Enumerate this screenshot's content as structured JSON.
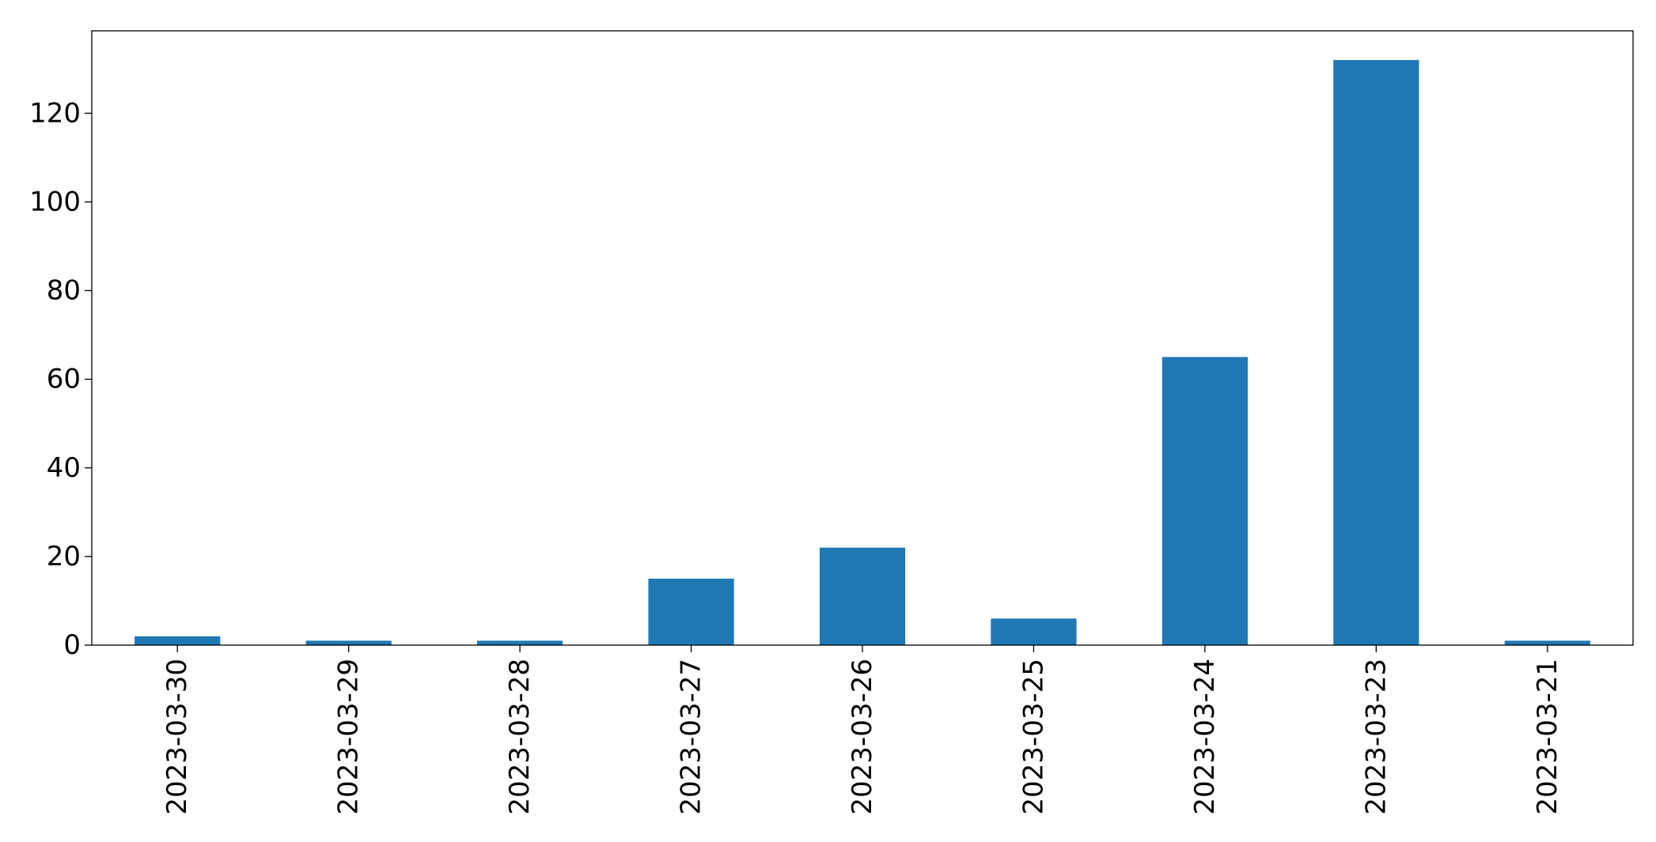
{
  "chart_data": {
    "type": "bar",
    "title": "",
    "xlabel": "",
    "ylabel": "",
    "categories": [
      "2023-03-30",
      "2023-03-29",
      "2023-03-28",
      "2023-03-27",
      "2023-03-26",
      "2023-03-25",
      "2023-03-24",
      "2023-03-23",
      "2023-03-21"
    ],
    "values": [
      2,
      1,
      1,
      15,
      22,
      6,
      65,
      132,
      1
    ],
    "ylim": [
      0,
      138.6
    ],
    "yticks": [
      0,
      20,
      40,
      60,
      80,
      100,
      120
    ],
    "ytick_labels": [
      "0",
      "20",
      "40",
      "60",
      "80",
      "100",
      "120"
    ],
    "bar_color": "#1f77b4",
    "grid": false,
    "legend": false
  }
}
